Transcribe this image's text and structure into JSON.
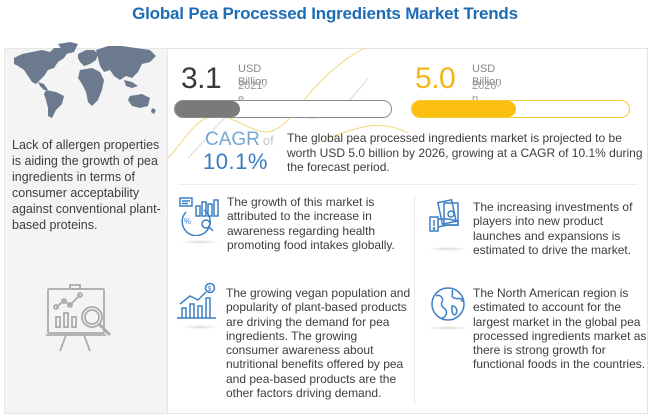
{
  "title": "Global Pea Processed Ingredients Market Trends",
  "left_panel": {
    "map_icon": "world-map-icon",
    "text": "Lack of allergen properties is aiding the growth of pea ingredients in terms of consumer acceptability against conventional plant-based proteins.",
    "bottom_icon": "presentation-analytics-icon"
  },
  "stats": [
    {
      "value": "3.1",
      "unit": "USD Billion",
      "year": "2021-e",
      "bar_fill_percent": 30,
      "color": "#7a7a7a",
      "value_color": "#2b2b2b"
    },
    {
      "value": "5.0",
      "unit": "USD Billion",
      "year": "2026-p",
      "bar_fill_percent": 48,
      "color": "#fbbf0f",
      "value_color": "#f6b619"
    }
  ],
  "cagr": {
    "label": "CAGR",
    "of": "of",
    "value": "10.1%",
    "description": "The global pea processed ingredients market is projected to be worth USD 5.0 billion by 2026, growing at a CAGR of 10.1% during the forecast period."
  },
  "cards": [
    {
      "icon": "analytics-report-icon",
      "text": "The growth of this market is attributed to the increase in awareness regarding health promoting food intakes globally."
    },
    {
      "icon": "money-hand-icon",
      "text": "The increasing investments of players into new product launches and expansions is estimated to drive the market."
    },
    {
      "icon": "growth-chart-dollar-icon",
      "text": "The growing vegan population and popularity of plant-based products are driving the demand for pea ingredients. The growing consumer awareness about nutritional benefits offered by pea and pea-based products are the other factors driving demand."
    },
    {
      "icon": "globe-icon",
      "text": "The North American region is estimated to account for the largest market in the global pea processed ingredients market as there is strong growth for functional foods in the countries."
    }
  ],
  "colors": {
    "title": "#1d6db5",
    "accent_blue": "#3a7cc0",
    "icon_blue": "#3b7fc4",
    "gray_bar": "#7a7a7a",
    "yellow_bar": "#fbbf0f",
    "panel_bg": "#f4f4f4"
  }
}
